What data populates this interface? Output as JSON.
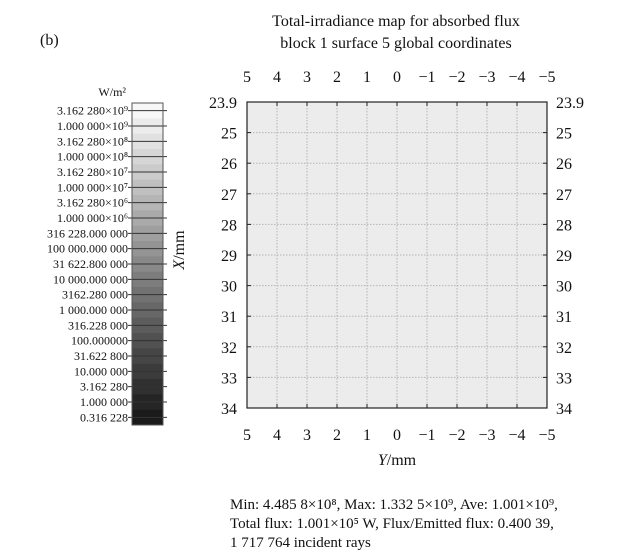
{
  "chart_data": {
    "type": "heatmap",
    "panel_label": "(b)",
    "title_line1": "Total-irradiance map for absorbed flux",
    "title_line2": "block 1 surface 5 global coordinates",
    "xlabel": "Y/mm",
    "ylabel": "X/mm",
    "x_ticks": [
      "5",
      "4",
      "3",
      "2",
      "1",
      "0",
      "−1",
      "−2",
      "−3",
      "−4",
      "−5"
    ],
    "y_ticks": [
      "23.9",
      "25",
      "26",
      "27",
      "28",
      "29",
      "30",
      "31",
      "32",
      "33",
      "34"
    ],
    "xlim": [
      5,
      -5
    ],
    "ylim": [
      23.9,
      34
    ],
    "grid": true,
    "map_color": "#ececec",
    "grid_color": "#b4b4b4",
    "colorbar": {
      "unit": "W/m²",
      "labels": [
        "3.162 280×10⁹",
        "1.000 000×10⁹",
        "3.162 280×10⁸",
        "1.000 000×10⁸",
        "3.162 280×10⁷",
        "1.000 000×10⁷",
        "3.162 280×10⁶",
        "1.000 000×10⁶",
        "316 228.000 000",
        "100 000.000 000",
        "31 622.800 000",
        "10 000.000 000",
        "3162.280 000",
        "1 000.000 000",
        "316.228 000",
        "100.000000",
        "31.622 800",
        "10.000 000",
        "3.162 280",
        "1.000 000",
        "0.316 228"
      ],
      "top_color": "#f7f7f7",
      "bottom_color": "#1a1a1a"
    },
    "stats": {
      "line1": "Min: 4.485 8×10⁸, Max: 1.332 5×10⁹, Ave: 1.001×10⁹,",
      "line2": "Total flux: 1.001×10⁵ W, Flux/Emitted flux: 0.400 39,",
      "line3": "1 717 764 incident rays"
    }
  }
}
